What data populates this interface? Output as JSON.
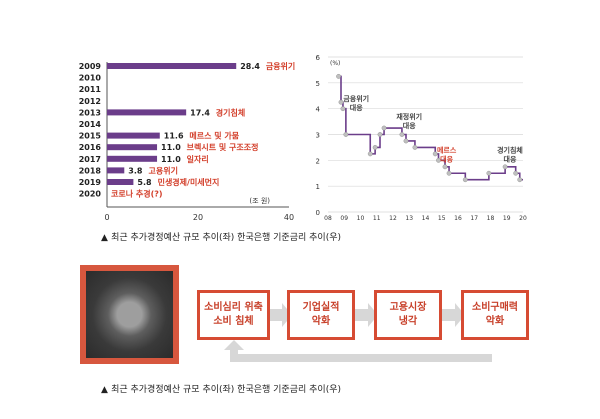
{
  "chart_data": [
    {
      "type": "bar",
      "orientation": "horizontal",
      "categories": [
        "2009",
        "2010",
        "2011",
        "2012",
        "2013",
        "2014",
        "2015",
        "2016",
        "2017",
        "2018",
        "2019",
        "2020"
      ],
      "values": [
        28.4,
        null,
        null,
        null,
        17.4,
        null,
        11.6,
        11.0,
        11.0,
        3.8,
        5.8,
        null
      ],
      "value_labels": [
        "28.4",
        "",
        "",
        "",
        "17.4",
        "",
        "11.6",
        "11.0",
        "11.0",
        "3.8",
        "5.8",
        ""
      ],
      "annotations": [
        "금융위기",
        "",
        "",
        "",
        "경기침체",
        "",
        "메르스 및 가뭄",
        "브렉시트 및 구조조정",
        "일자리",
        "고용위기",
        "민생경제/미세먼지",
        "코로나 추경(?)"
      ],
      "xticks": [
        "0",
        "20",
        "40"
      ],
      "xlim": [
        0,
        40
      ],
      "unit_label": "(조 원)",
      "colors": {
        "bar": "#6b3d8a",
        "annotation": "#d3402c"
      }
    },
    {
      "type": "line",
      "unit_label": "(%)",
      "yticks": [
        "0",
        "1",
        "2",
        "3",
        "4",
        "5",
        "6"
      ],
      "ylim": [
        0,
        6
      ],
      "xticks": [
        "08",
        "09",
        "10",
        "11",
        "12",
        "13",
        "14",
        "15",
        "16",
        "17",
        "18",
        "19",
        "20"
      ],
      "x": [
        2008.65,
        2008.8,
        2008.92,
        2009.1,
        2010.6,
        2010.9,
        2011.2,
        2011.45,
        2012.55,
        2012.8,
        2013.35,
        2014.6,
        2014.8,
        2015.2,
        2015.45,
        2016.45,
        2017.9,
        2018.9,
        2019.55,
        2019.8
      ],
      "y": [
        5.25,
        4.25,
        4.0,
        3.0,
        2.25,
        2.5,
        3.0,
        3.25,
        3.0,
        2.75,
        2.5,
        2.25,
        2.0,
        1.75,
        1.5,
        1.25,
        1.5,
        1.75,
        1.5,
        1.25
      ],
      "annotations": [
        {
          "text": "금융위기\n대응",
          "x": 2009.0,
          "color": "#444444"
        },
        {
          "text": "재정위기\n대응",
          "x": 2013.0,
          "color": "#444444"
        },
        {
          "text": "메르스\n대응",
          "x": 2015.3,
          "color": "#d3402c"
        },
        {
          "text": "경기침체\n대응",
          "x": 2019.2,
          "color": "#444444"
        }
      ],
      "colors": {
        "line": "#6b3d8a",
        "marker": "#bfbfbf"
      }
    }
  ],
  "captions": {
    "top": {
      "marker": "▲",
      "text": "최근 추가경정예산 규모 추이(좌) 한국은행 기준금리 추이(우)"
    },
    "bottom": {
      "marker": "▲",
      "text": "최근 추가경정예산 규모 추이(좌) 한국은행 기준금리 추이(우)"
    }
  },
  "flow": {
    "boxes": [
      {
        "line1": "소비심리 위축",
        "line2": "소비 침체"
      },
      {
        "line1": "기업실적",
        "line2": "악화"
      },
      {
        "line1": "고용시장",
        "line2": "냉각"
      },
      {
        "line1": "소비구매력",
        "line2": "악화"
      }
    ],
    "colors": {
      "box": "#d64b33",
      "arrow": "#d7d7d7"
    }
  }
}
